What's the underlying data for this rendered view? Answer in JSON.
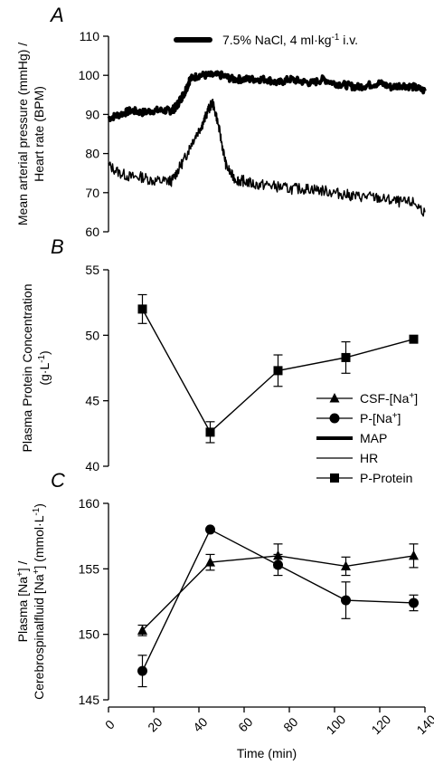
{
  "chart_data": [
    {
      "panel": "A",
      "type": "line",
      "ylabel_lines": [
        "Mean arterial pressure (mmHg) /",
        "Heart rate (BPM)"
      ],
      "ylim": [
        60,
        110
      ],
      "yticks": [
        60,
        70,
        80,
        90,
        100,
        110
      ],
      "xlim": [
        0,
        140
      ],
      "annotation": "7.5% NaCl, 4 ml·kg⁻¹ i.v.",
      "annotation_bar_x": [
        0,
        140
      ],
      "series": [
        {
          "name": "MAP",
          "style": "thick",
          "x": [
            0,
            5,
            10,
            15,
            20,
            25,
            28,
            30,
            32,
            34,
            36,
            40,
            45,
            50,
            55,
            60,
            65,
            70,
            75,
            80,
            85,
            90,
            95,
            100,
            105,
            110,
            115,
            120,
            125,
            130,
            135,
            140
          ],
          "y": [
            89,
            90,
            91,
            90.5,
            91,
            91,
            91,
            92,
            94,
            96,
            99,
            100,
            100,
            100,
            99,
            99,
            99,
            99,
            98,
            99,
            98.5,
            98,
            99,
            98,
            97.5,
            97,
            97.5,
            98,
            97,
            97.5,
            97,
            96
          ]
        },
        {
          "name": "HR",
          "style": "thin",
          "x": [
            0,
            5,
            10,
            15,
            20,
            25,
            28,
            31,
            34,
            37,
            40,
            42,
            44,
            46,
            48,
            50,
            52,
            55,
            58,
            60,
            65,
            70,
            75,
            80,
            85,
            90,
            95,
            100,
            105,
            110,
            115,
            120,
            125,
            130,
            135,
            140
          ],
          "y": [
            77,
            75,
            74,
            74,
            73,
            73,
            73,
            76,
            79,
            83,
            86,
            88,
            91,
            93,
            89,
            83,
            77,
            74,
            73,
            73,
            72,
            72,
            71.5,
            71,
            71,
            71,
            70.5,
            70,
            69.5,
            69,
            69,
            68.5,
            68,
            67.5,
            67.5,
            65
          ]
        }
      ]
    },
    {
      "panel": "B",
      "type": "line",
      "ylabel_lines": [
        "Plasma Protein Concentration",
        "(g·L⁻¹)"
      ],
      "ylim": [
        40,
        55
      ],
      "yticks": [
        40,
        45,
        50,
        55
      ],
      "xlim": [
        0,
        140
      ],
      "series": [
        {
          "name": "P-Protein",
          "marker": "square",
          "x": [
            15,
            45,
            75,
            105,
            135
          ],
          "y": [
            52.0,
            42.6,
            47.3,
            48.3,
            49.7
          ],
          "err": [
            1.1,
            0.8,
            1.2,
            1.2,
            0
          ]
        }
      ]
    },
    {
      "panel": "C",
      "type": "line",
      "ylabel_lines": [
        "Plasma [Na⁺] /",
        "Cerebrospinalfluid [Na⁺] (mmol·L⁻¹)"
      ],
      "ylim": [
        145,
        160
      ],
      "yticks": [
        145,
        150,
        155,
        160
      ],
      "xlim": [
        0,
        140
      ],
      "xticks": [
        0,
        20,
        40,
        60,
        80,
        100,
        120,
        140
      ],
      "xlabel": "Time (min)",
      "series": [
        {
          "name": "CSF-[Na⁺]",
          "marker": "triangle",
          "x": [
            15,
            45,
            75,
            105,
            135
          ],
          "y": [
            150.3,
            155.5,
            156.0,
            155.2,
            156.0
          ],
          "err": [
            0.4,
            0.6,
            0.9,
            0.7,
            0.9
          ]
        },
        {
          "name": "P-[Na⁺]",
          "marker": "circle",
          "x": [
            15,
            45,
            75,
            105,
            135
          ],
          "y": [
            147.2,
            158.0,
            155.3,
            152.6,
            152.4
          ],
          "err": [
            1.2,
            0,
            0.8,
            1.4,
            0.6
          ]
        }
      ]
    }
  ],
  "legend": {
    "placement": "right, between panels B and C",
    "items": [
      {
        "label": "CSF-[Na⁺]",
        "marker": "triangle",
        "line": "thin"
      },
      {
        "label": "P-[Na⁺]",
        "marker": "circle",
        "line": "thin"
      },
      {
        "label": "MAP",
        "marker": "none",
        "line": "thick"
      },
      {
        "label": "HR",
        "marker": "none",
        "line": "thin"
      },
      {
        "label": "P-Protein",
        "marker": "square",
        "line": "thin"
      }
    ]
  }
}
